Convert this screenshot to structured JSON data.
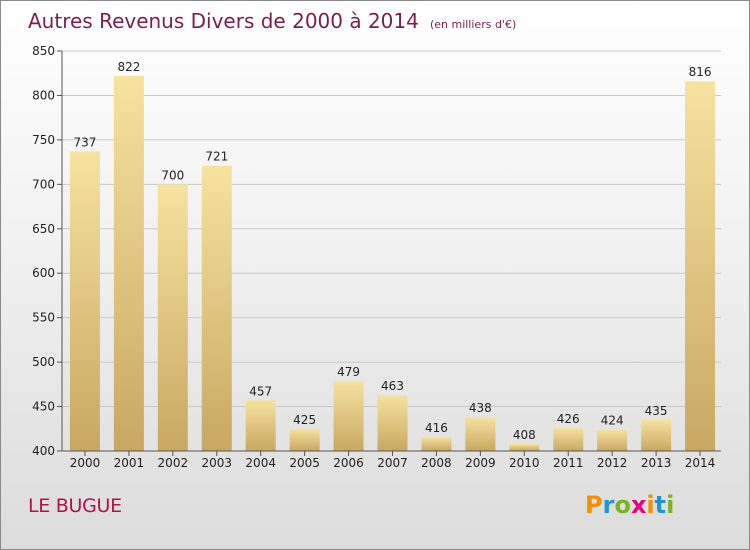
{
  "header": {
    "title": "Autres Revenus Divers de 2000 à 2014",
    "unit": "(en milliers d'€)"
  },
  "footer": {
    "commune": "LE BUGUE",
    "brand": "Proxiti",
    "brand_letters": [
      {
        "ch": "P",
        "color": "#f39200"
      },
      {
        "ch": "r",
        "color": "#1f95d2"
      },
      {
        "ch": "o",
        "color": "#7ab51d"
      },
      {
        "ch": "x",
        "color": "#e6007e"
      },
      {
        "ch": "i",
        "color": "#f39200"
      },
      {
        "ch": "t",
        "color": "#1f95d2"
      },
      {
        "ch": "i",
        "color": "#7ab51d"
      }
    ]
  },
  "colors": {
    "title": "#7a1f4d",
    "commune": "#b0124a",
    "bar_light": "#f7e2a0",
    "bar_dark": "#c8a862",
    "grid": "#c8c8c8"
  },
  "chart_data": {
    "type": "bar",
    "title": "Autres Revenus Divers de 2000 à 2014",
    "ylabel": "",
    "xlabel": "",
    "categories": [
      "2000",
      "2001",
      "2002",
      "2003",
      "2004",
      "2005",
      "2006",
      "2007",
      "2008",
      "2009",
      "2010",
      "2011",
      "2012",
      "2013",
      "2014"
    ],
    "values": [
      737,
      822,
      700,
      721,
      457,
      425,
      479,
      463,
      416,
      438,
      408,
      426,
      424,
      435,
      816
    ],
    "ylim": [
      400,
      850
    ],
    "yticks": [
      400,
      450,
      500,
      550,
      600,
      650,
      700,
      750,
      800,
      850
    ],
    "grid": true,
    "legend": "none"
  }
}
